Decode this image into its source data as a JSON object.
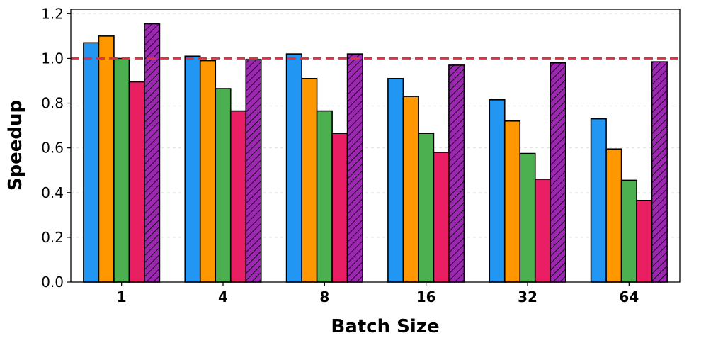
{
  "chart_data": {
    "type": "bar",
    "xlabel": "Batch Size",
    "ylabel": "Speedup",
    "ylim": [
      0,
      1.22
    ],
    "yticks": [
      "0.0",
      "0.2",
      "0.4",
      "0.6",
      "0.8",
      "1.0",
      "1.2"
    ],
    "categories": [
      "1",
      "4",
      "8",
      "16",
      "32",
      "64"
    ],
    "grid": "horizontal dashed",
    "legend": "none",
    "reference_line": {
      "y": 1.0,
      "color": "#d9343f",
      "style": "dashed"
    },
    "series": [
      {
        "values": [
          1.07,
          1.01,
          1.02,
          0.91,
          0.815,
          0.73
        ],
        "color": "#2196f3",
        "hatch": false
      },
      {
        "values": [
          1.1,
          0.99,
          0.91,
          0.83,
          0.72,
          0.595
        ],
        "color": "#ff9800",
        "hatch": false
      },
      {
        "values": [
          1.0,
          0.865,
          0.765,
          0.665,
          0.575,
          0.455
        ],
        "color": "#4caf50",
        "hatch": false
      },
      {
        "values": [
          0.895,
          0.765,
          0.665,
          0.58,
          0.46,
          0.365
        ],
        "color": "#e91e63",
        "hatch": false
      },
      {
        "values": [
          1.155,
          0.995,
          1.02,
          0.97,
          0.98,
          0.985
        ],
        "color": "#9c27b0",
        "hatch": true
      }
    ]
  }
}
